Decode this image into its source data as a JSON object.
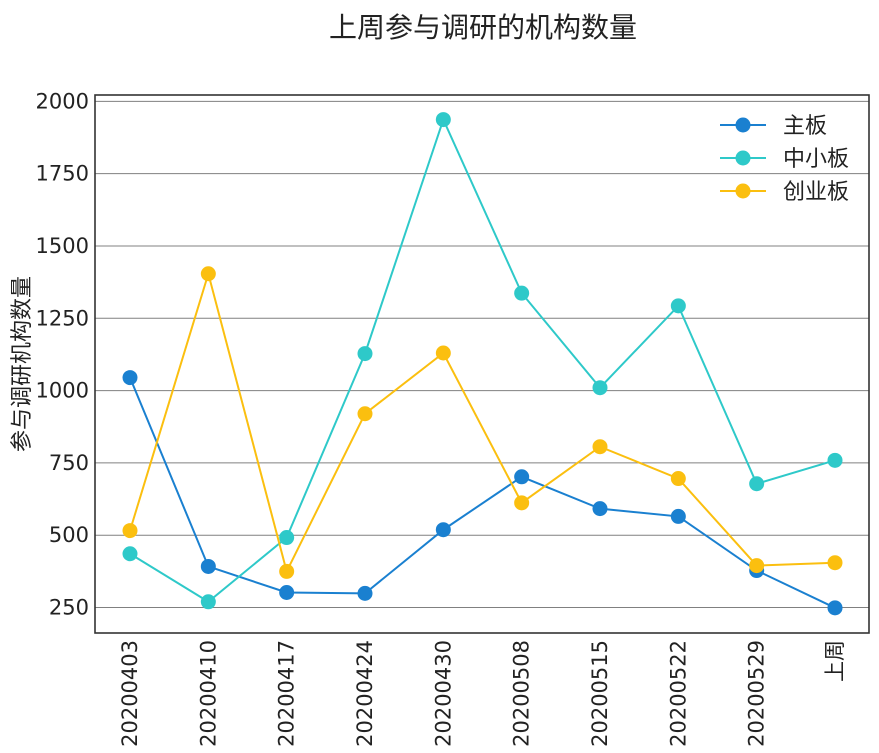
{
  "chart_data": {
    "type": "line",
    "title": "上周参与调研的机构数量",
    "xlabel": "",
    "ylabel": "参与调研机构数量",
    "categories": [
      "20200403",
      "20200410",
      "20200417",
      "20200424",
      "20200430",
      "20200508",
      "20200515",
      "20200522",
      "20200529",
      "上周"
    ],
    "series": [
      {
        "name": "主板",
        "color": "#1a80d0",
        "values": [
          1045,
          392,
          302,
          299,
          519,
          702,
          592,
          565,
          378,
          249
        ]
      },
      {
        "name": "中小板",
        "color": "#2ec9c9",
        "values": [
          436,
          270,
          492,
          1128,
          1937,
          1337,
          1010,
          1293,
          678,
          759
        ]
      },
      {
        "name": "创业板",
        "color": "#fbbf0f",
        "values": [
          516,
          1404,
          375,
          920,
          1130,
          612,
          806,
          696,
          395,
          405
        ]
      }
    ],
    "ylim": [
      162,
      2022
    ],
    "yticks": [
      250,
      500,
      750,
      1000,
      1250,
      1500,
      1750,
      2000
    ],
    "grid": "y",
    "legend_position": "top-right"
  }
}
